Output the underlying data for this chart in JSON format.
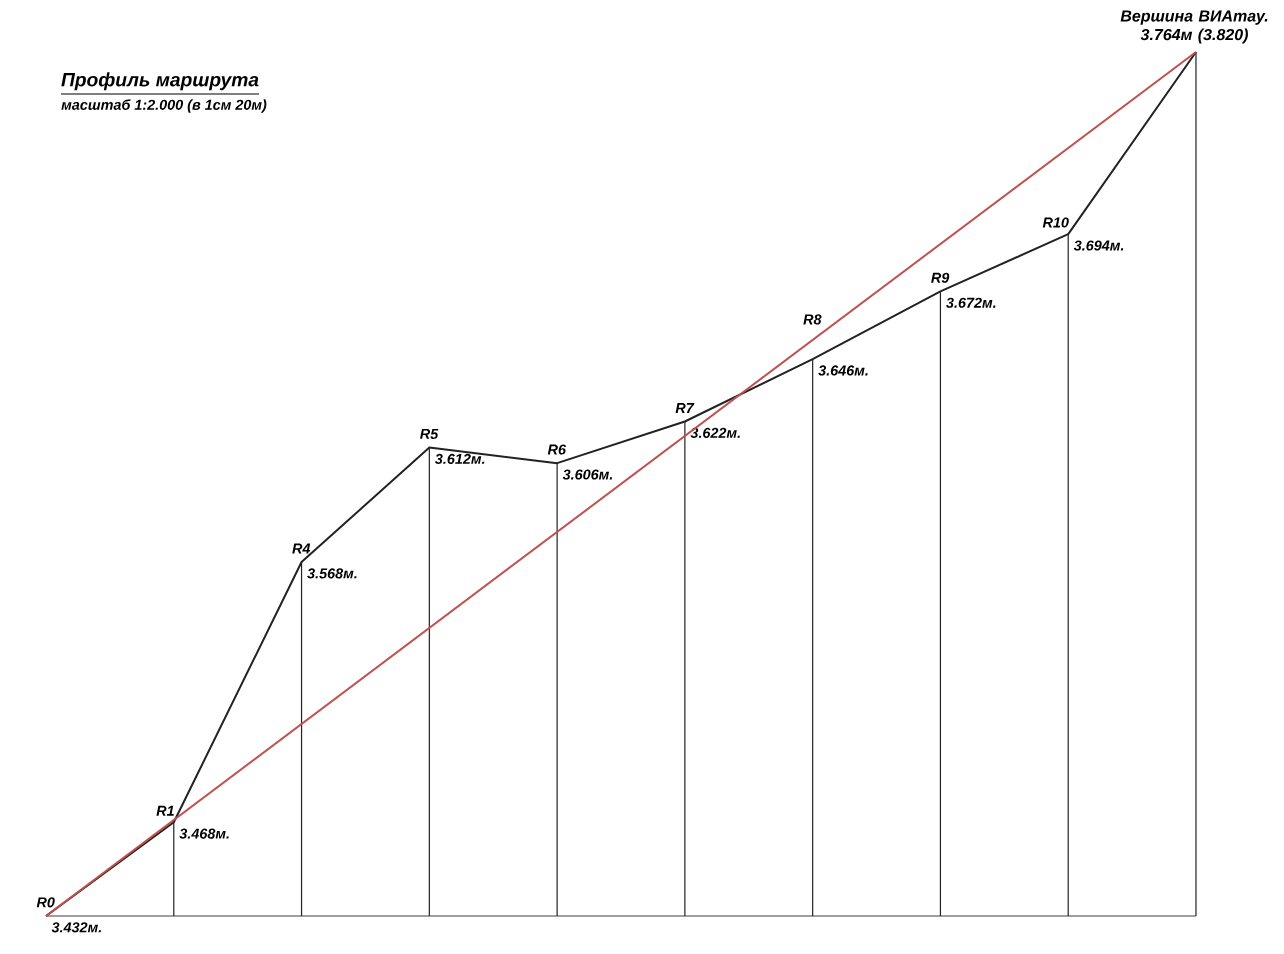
{
  "chart_data": {
    "type": "line",
    "title": "Профиль маршрута",
    "subtitle": "масштаб 1:2.000 (в 1см 20м)",
    "categories": [
      "R0",
      "R1",
      "R4",
      "R5",
      "R6",
      "R7",
      "R8",
      "R9",
      "R10",
      "Вершина ВИАтау. 3.764м (3.820)"
    ],
    "tick_labels": false,
    "series": [
      {
        "color": "#222222",
        "values": [
          3432,
          3468,
          3568,
          3612,
          3606,
          3622,
          3646,
          3672,
          3694,
          3764
        ],
        "value_labels": [
          "3.432м.",
          "3.468м.",
          "3.568м.",
          "3.612м.",
          "3.606м.",
          "3.622м.",
          "3.646м.",
          "3.672м.",
          "3.694м.",
          null
        ]
      },
      {
        "color": "#c0504d",
        "x": [
          "R0",
          "Вершина ВИАтау. 3.764м (3.820)"
        ],
        "values": [
          3432,
          3764
        ]
      }
    ]
  }
}
